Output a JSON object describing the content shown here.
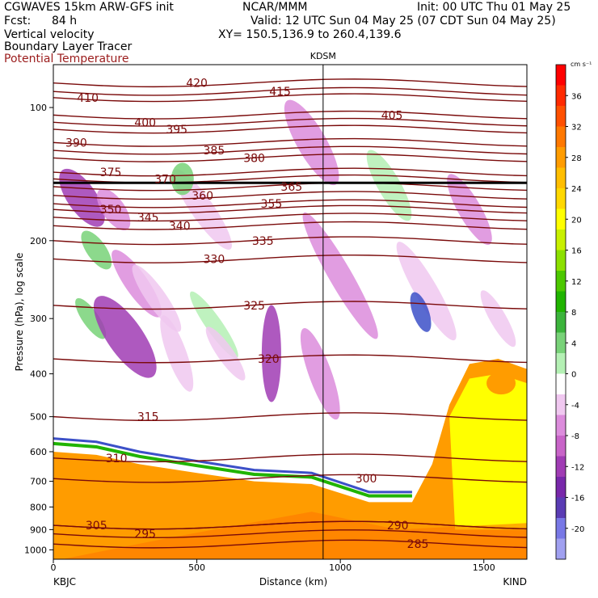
{
  "header": {
    "model": "CGWAVES 15km ARW-GFS init",
    "org": "NCAR/MMM",
    "init": "Init: 00 UTC Thu 01 May 25",
    "fcst_label": "Fcst:",
    "fcst_value": "84 h",
    "valid": "Valid: 12 UTC Sun 04 May 25 (07 CDT Sun 04 May 25)",
    "field1": "Vertical velocity",
    "field2": "Boundary Layer Tracer",
    "field3": "Potential Temperature",
    "xy": "XY= 150.5,136.9 to 260.4,139.6"
  },
  "chart_data": {
    "type": "cross-section",
    "station_mid": "KDSM",
    "station_left": "KBJC",
    "station_right": "KIND",
    "xlabel": "Distance (km)",
    "ylabel": "Pressure (hPa), log scale",
    "xlim": [
      0,
      1650
    ],
    "x_ticks": [
      0,
      500,
      1000,
      1500
    ],
    "y_ticks": [
      100,
      200,
      300,
      400,
      500,
      600,
      700,
      800,
      900,
      1000
    ],
    "ylim": [
      1050,
      80
    ],
    "station_mid_x": 940,
    "colorbar": {
      "unit": "cm s⁻¹",
      "levels": [
        36,
        32,
        28,
        24,
        20,
        16,
        12,
        8,
        4,
        0,
        -4,
        -8,
        -12,
        -16,
        -20
      ],
      "colors": [
        "#ff0000",
        "#ff2a00",
        "#ff5000",
        "#ff7800",
        "#ff9c00",
        "#ffbe00",
        "#ffd800",
        "#ffff00",
        "#c8f000",
        "#8ce000",
        "#4cc800",
        "#20b400",
        "#3cb43c",
        "#78d278",
        "#b4f0b4",
        "#ffffff",
        "#f0c8f0",
        "#dc8cdc",
        "#c864c8",
        "#a03cb4",
        "#7828aa",
        "#5a3cb4",
        "#7878e6",
        "#a0a0f0"
      ]
    },
    "theta_contours": [
      {
        "label": "285",
        "p": 970,
        "x": 1270
      },
      {
        "label": "290",
        "p": 880,
        "x": 1200
      },
      {
        "label": "295",
        "p": 920,
        "x": 320
      },
      {
        "label": "300",
        "p": 690,
        "x": 1090
      },
      {
        "label": "305",
        "p": 880,
        "x": 150
      },
      {
        "label": "310",
        "p": 620,
        "x": 220
      },
      {
        "label": "315",
        "p": 500,
        "x": 330
      },
      {
        "label": "320",
        "p": 370,
        "x": 750
      },
      {
        "label": "325",
        "p": 280,
        "x": 700
      },
      {
        "label": "330",
        "p": 220,
        "x": 560
      },
      {
        "label": "335",
        "p": 200,
        "x": 730
      },
      {
        "label": "340",
        "p": 185,
        "x": 440
      },
      {
        "label": "345",
        "p": 177,
        "x": 330
      },
      {
        "label": "350",
        "p": 170,
        "x": 200
      },
      {
        "label": "355",
        "p": 165,
        "x": 760
      },
      {
        "label": "360",
        "p": 158,
        "x": 520
      },
      {
        "label": "365",
        "p": 151,
        "x": 830
      },
      {
        "label": "370",
        "p": 145,
        "x": 390
      },
      {
        "label": "375",
        "p": 140,
        "x": 200
      },
      {
        "label": "380",
        "p": 130,
        "x": 700
      },
      {
        "label": "385",
        "p": 125,
        "x": 560
      },
      {
        "label": "390",
        "p": 120,
        "x": 80
      },
      {
        "label": "395",
        "p": 112,
        "x": 430
      },
      {
        "label": "400",
        "p": 108,
        "x": 320
      },
      {
        "label": "405",
        "p": 104,
        "x": 1180
      },
      {
        "label": "410",
        "p": 95,
        "x": 120
      },
      {
        "label": "415",
        "p": 92,
        "x": 790
      },
      {
        "label": "420",
        "p": 88,
        "x": 500
      }
    ]
  }
}
